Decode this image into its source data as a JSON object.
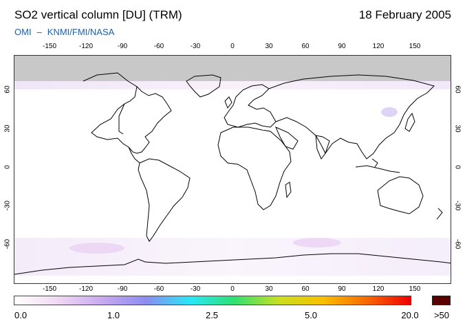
{
  "header": {
    "title": "SO2 vertical column [DU] (TRM)",
    "date": "18 February 2005",
    "credit_left": "OMI",
    "credit_sep": "–",
    "credit_right": "KNMI/FMI/NASA"
  },
  "map": {
    "lon_ticks_top": [
      "-150",
      "-120",
      "-90",
      "-60",
      "-30",
      "0",
      "30",
      "60",
      "90",
      "120",
      "150"
    ],
    "lon_ticks_bottom": [
      "-150",
      "-120",
      "-90",
      "-60",
      "-30",
      "0",
      "30",
      "60",
      "90",
      "120",
      "150"
    ],
    "lat_ticks_left": [
      "60",
      "30",
      "0",
      "-30",
      "-60"
    ],
    "lat_ticks_right": [
      "60",
      "30",
      "0",
      "-30",
      "-60"
    ],
    "no_data_color": "#c8c8c8",
    "coastline_color": "#000000"
  },
  "colorbar": {
    "labels": [
      "0.0",
      "1.0",
      "2.5",
      "5.0",
      "20.0"
    ],
    "overflow_label": ">50",
    "stops": [
      "#ffffff",
      "#f0d8f4",
      "#c8a8f0",
      "#8c8cf0",
      "#28e8f8",
      "#30e070",
      "#c8e020",
      "#f8c000",
      "#f86800",
      "#f00000"
    ],
    "overflow_color": "#5a0000"
  }
}
